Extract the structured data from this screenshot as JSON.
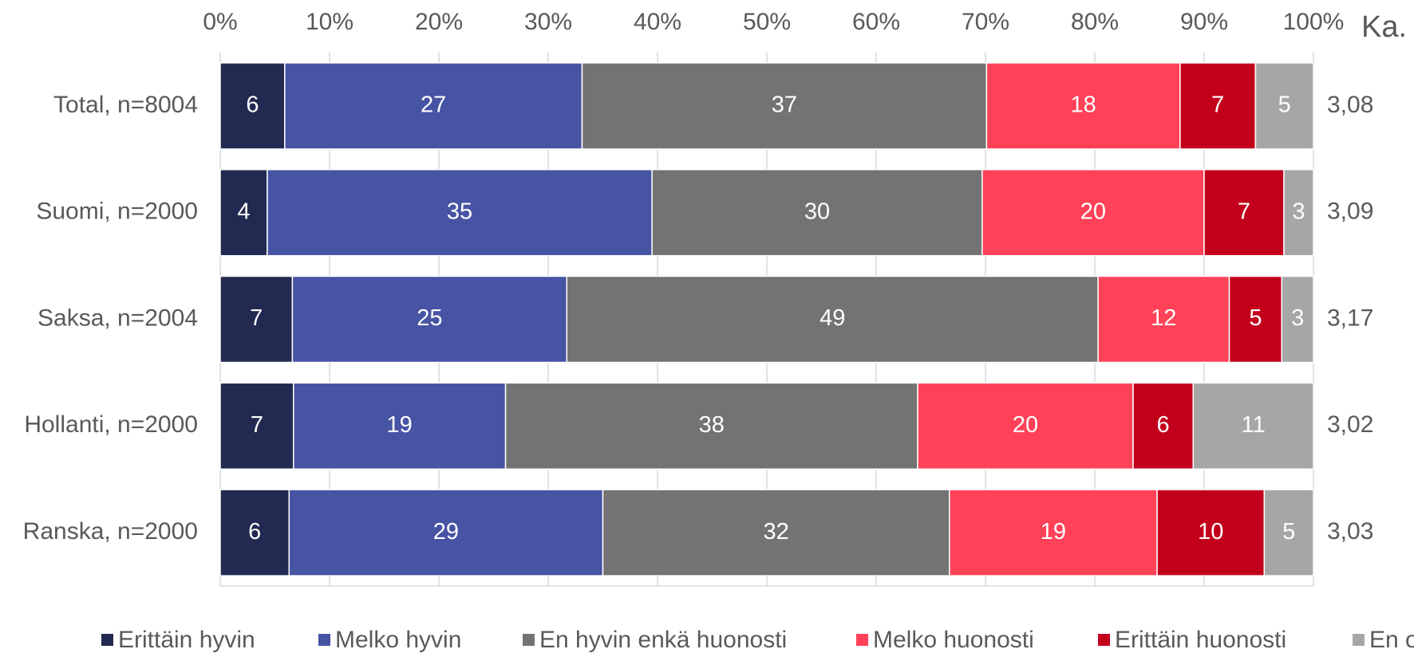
{
  "chart_data": {
    "type": "stacked_bar_horizontal",
    "categories": [
      "Total, n=8004",
      "Suomi, n=2000",
      "Saksa, n=2004",
      "Hollanti, n=2000",
      "Ranska, n=2000"
    ],
    "series": [
      {
        "name": "Erittäin hyvin",
        "color": "#222a52",
        "values": [
          5.9,
          4.3,
          6.6,
          6.7,
          6.3
        ],
        "value_labels": [
          "6",
          "4",
          "7",
          "7",
          "6"
        ]
      },
      {
        "name": "Melko hyvin",
        "color": "#4753a3",
        "values": [
          27.2,
          35.2,
          25.1,
          19.4,
          28.7
        ],
        "value_labels": [
          "27",
          "35",
          "25",
          "19",
          "29"
        ]
      },
      {
        "name": "En hyvin enkä huonosti",
        "color": "#737373",
        "values": [
          37.0,
          30.2,
          48.6,
          37.7,
          31.7
        ],
        "value_labels": [
          "37",
          "30",
          "49",
          "38",
          "32"
        ]
      },
      {
        "name": "Melko huonosti",
        "color": "#ff4258",
        "values": [
          17.7,
          20.3,
          12.0,
          19.7,
          19.0
        ],
        "value_labels": [
          "18",
          "20",
          "12",
          "20",
          "19"
        ]
      },
      {
        "name": "Erittäin huonosti",
        "color": "#c3001c",
        "values": [
          6.9,
          7.3,
          4.8,
          5.5,
          9.8
        ],
        "value_labels": [
          "7",
          "7",
          "5",
          "6",
          "10"
        ]
      },
      {
        "name": "En osaa sanoa",
        "color": "#a6a6a6",
        "values": [
          5.3,
          2.7,
          2.9,
          11.0,
          4.5
        ],
        "value_labels": [
          "5",
          "3",
          "3",
          "11",
          "5"
        ]
      }
    ],
    "mean_title": "Ka.",
    "mean_labels": [
      "3,08",
      "3,09",
      "3,17",
      "3,02",
      "3,03"
    ],
    "xlim": [
      0,
      100
    ],
    "xticks": [
      {
        "value": 0,
        "label": "0%"
      },
      {
        "value": 10,
        "label": "10%"
      },
      {
        "value": 20,
        "label": "20%"
      },
      {
        "value": 30,
        "label": "30%"
      },
      {
        "value": 40,
        "label": "40%"
      },
      {
        "value": 50,
        "label": "50%"
      },
      {
        "value": 60,
        "label": "60%"
      },
      {
        "value": 70,
        "label": "70%"
      },
      {
        "value": 80,
        "label": "80%"
      },
      {
        "value": 90,
        "label": "90%"
      },
      {
        "value": 100,
        "label": "100%"
      }
    ],
    "grid": true,
    "legend": "bottom"
  }
}
